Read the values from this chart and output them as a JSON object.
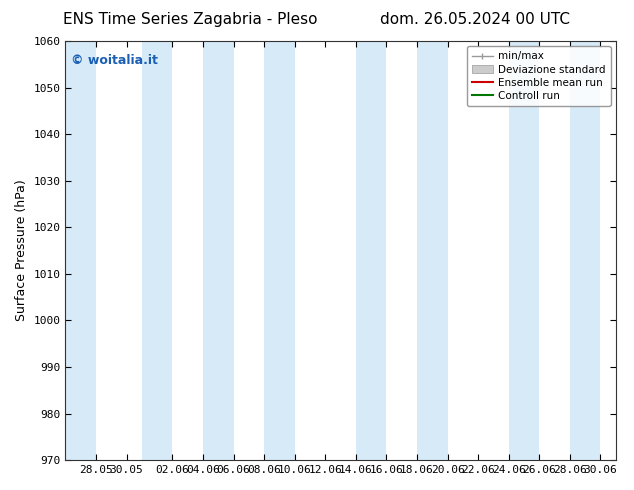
{
  "title_left": "ENS Time Series Zagabria - Pleso",
  "title_right": "dom. 26.05.2024 00 UTC",
  "ylabel": "Surface Pressure (hPa)",
  "ylim": [
    970,
    1060
  ],
  "yticks": [
    970,
    980,
    990,
    1000,
    1010,
    1020,
    1030,
    1040,
    1050,
    1060
  ],
  "x_tick_labels": [
    "28.05",
    "30.05",
    "",
    "02.06",
    "04.06",
    "06.06",
    "08.06",
    "10.06",
    "12.06",
    "14.06",
    "16.06",
    "18.06",
    "20.06",
    "22.06",
    "24.06",
    "26.06",
    "28.06",
    "30.06"
  ],
  "shaded_band_color": "#d6eaf8",
  "shaded_band_alpha": 1.0,
  "background_color": "#ffffff",
  "watermark_text": "© woitalia.it",
  "watermark_color": "#1a5fb4",
  "legend_entries": [
    "min/max",
    "Deviazione standard",
    "Ensemble mean run",
    "Controll run"
  ],
  "legend_colors_line": [
    "#999999",
    "#bbbbbb",
    "#cc0000",
    "#007700"
  ],
  "title_fontsize": 11,
  "axis_fontsize": 9,
  "tick_fontsize": 8,
  "figure_width": 6.34,
  "figure_height": 4.9,
  "dpi": 100,
  "n_days": 34,
  "shaded_day_indices": [
    0,
    1,
    4,
    5,
    8,
    9,
    14,
    15,
    18,
    19,
    24,
    25,
    30,
    31
  ]
}
